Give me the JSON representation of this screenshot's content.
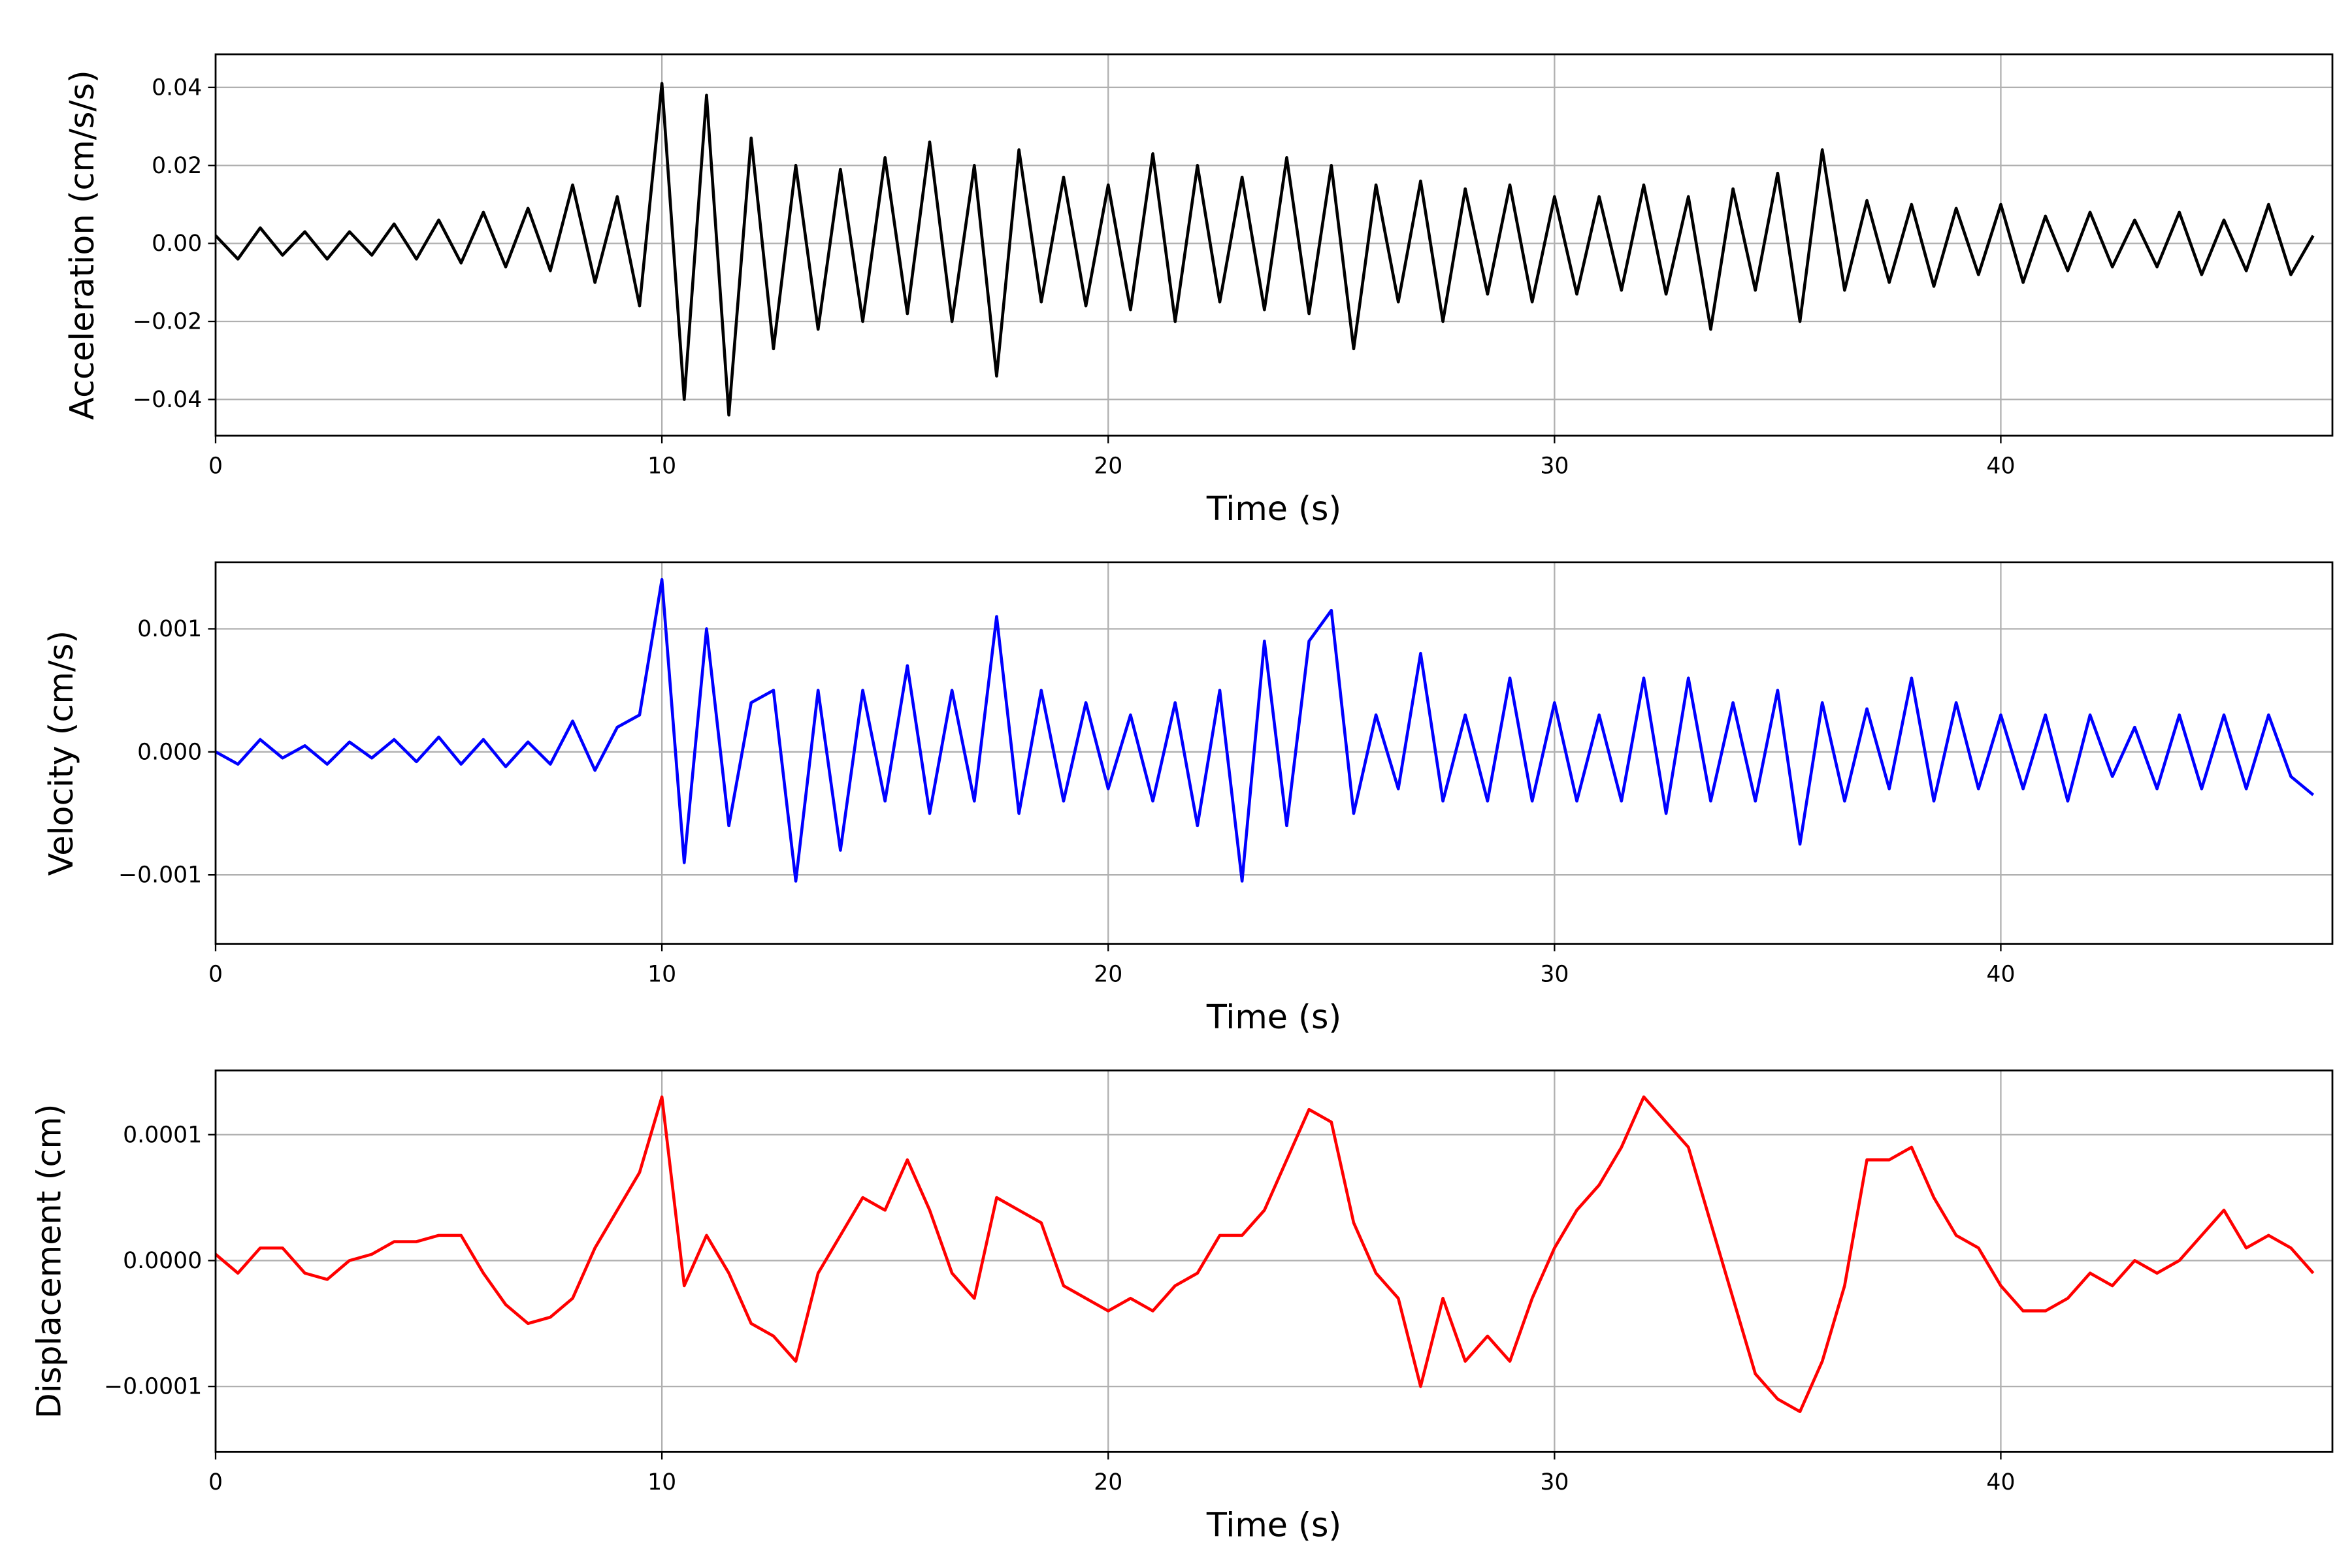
{
  "chart_data": [
    {
      "type": "line",
      "y_label": "Acceleration (cm/s/s)",
      "x_label": "Time (s)",
      "xlim": [
        0,
        47.43
      ],
      "ylim": [
        -0.0493,
        0.0485
      ],
      "xticks": [
        0,
        10,
        20,
        30,
        40
      ],
      "yticks": [
        {
          "value": -0.04,
          "label": "−0.04"
        },
        {
          "value": -0.02,
          "label": "−0.02"
        },
        {
          "value": 0,
          "label": "0.00"
        },
        0.02,
        0.04
      ],
      "grid": true,
      "x": [
        0,
        0.5,
        1,
        1.5,
        2,
        2.5,
        3,
        3.5,
        4,
        4.5,
        5,
        5.5,
        6,
        6.5,
        7,
        7.5,
        8,
        8.5,
        9,
        9.5,
        10,
        10.5,
        11,
        11.5,
        12,
        12.5,
        13,
        13.5,
        14,
        14.5,
        15,
        15.5,
        16,
        16.5,
        17,
        17.5,
        18,
        18.5,
        19,
        19.5,
        20,
        20.5,
        21,
        21.5,
        22,
        22.5,
        23,
        23.5,
        24,
        24.5,
        25,
        25.5,
        26,
        26.5,
        27,
        27.5,
        28,
        28.5,
        29,
        29.5,
        30,
        30.5,
        31,
        31.5,
        32,
        32.5,
        33,
        33.5,
        34,
        34.5,
        35,
        35.5,
        36,
        36.5,
        37,
        37.5,
        38,
        38.5,
        39,
        39.5,
        40,
        40.5,
        41,
        41.5,
        42,
        42.5,
        43,
        43.5,
        44,
        44.5,
        45,
        45.5,
        46,
        46.5,
        47
      ],
      "series": [
        {
          "color": "#000000",
          "values": [
            0.002,
            -0.004,
            0.004,
            -0.003,
            0.003,
            -0.004,
            0.003,
            -0.003,
            0.005,
            -0.004,
            0.006,
            -0.005,
            0.008,
            -0.006,
            0.009,
            -0.007,
            0.015,
            -0.01,
            0.012,
            -0.016,
            0.041,
            -0.04,
            0.038,
            -0.044,
            0.027,
            -0.027,
            0.02,
            -0.022,
            0.019,
            -0.02,
            0.022,
            -0.018,
            0.026,
            -0.02,
            0.02,
            -0.034,
            0.024,
            -0.015,
            0.017,
            -0.016,
            0.015,
            -0.017,
            0.023,
            -0.02,
            0.02,
            -0.015,
            0.017,
            -0.017,
            0.022,
            -0.018,
            0.02,
            -0.027,
            0.015,
            -0.015,
            0.016,
            -0.02,
            0.014,
            -0.013,
            0.015,
            -0.015,
            0.012,
            -0.013,
            0.012,
            -0.012,
            0.015,
            -0.013,
            0.012,
            -0.022,
            0.014,
            -0.012,
            0.018,
            -0.02,
            0.024,
            -0.012,
            0.011,
            -0.01,
            0.01,
            -0.011,
            0.009,
            -0.008,
            0.01,
            -0.01,
            0.007,
            -0.007,
            0.008,
            -0.006,
            0.006,
            -0.006,
            0.008,
            -0.008,
            0.006,
            -0.007,
            0.01,
            -0.008,
            0.002
          ]
        }
      ]
    },
    {
      "type": "line",
      "y_label": "Velocity (cm/s)",
      "x_label": "Time (s)",
      "xlim": [
        0,
        47.43
      ],
      "ylim": [
        -0.00156,
        0.00154
      ],
      "xticks": [
        0,
        10,
        20,
        30,
        40
      ],
      "yticks": [
        {
          "value": -0.001,
          "label": "−0.001"
        },
        {
          "value": 0,
          "label": "0.000"
        },
        0.001
      ],
      "grid": true,
      "x": [
        0,
        0.5,
        1,
        1.5,
        2,
        2.5,
        3,
        3.5,
        4,
        4.5,
        5,
        5.5,
        6,
        6.5,
        7,
        7.5,
        8,
        8.5,
        9,
        9.5,
        10,
        10.5,
        11,
        11.5,
        12,
        12.5,
        13,
        13.5,
        14,
        14.5,
        15,
        15.5,
        16,
        16.5,
        17,
        17.5,
        18,
        18.5,
        19,
        19.5,
        20,
        20.5,
        21,
        21.5,
        22,
        22.5,
        23,
        23.5,
        24,
        24.5,
        25,
        25.5,
        26,
        26.5,
        27,
        27.5,
        28,
        28.5,
        29,
        29.5,
        30,
        30.5,
        31,
        31.5,
        32,
        32.5,
        33,
        33.5,
        34,
        34.5,
        35,
        35.5,
        36,
        36.5,
        37,
        37.5,
        38,
        38.5,
        39,
        39.5,
        40,
        40.5,
        41,
        41.5,
        42,
        42.5,
        43,
        43.5,
        44,
        44.5,
        45,
        45.5,
        46,
        46.5,
        47
      ],
      "series": [
        {
          "color": "#0000ff",
          "values": [
            0,
            -0.0001,
            0.0001,
            -5e-05,
            5e-05,
            -0.0001,
            8e-05,
            -5e-05,
            0.0001,
            -8e-05,
            0.00012,
            -0.0001,
            0.0001,
            -0.00012,
            8e-05,
            -0.0001,
            0.00025,
            -0.00015,
            0.0002,
            0.0003,
            0.0014,
            -0.0009,
            0.001,
            -0.0006,
            0.0004,
            0.0005,
            -0.00105,
            0.0005,
            -0.0008,
            0.0005,
            -0.0004,
            0.0007,
            -0.0005,
            0.0005,
            -0.0004,
            0.0011,
            -0.0005,
            0.0005,
            -0.0004,
            0.0004,
            -0.0003,
            0.0003,
            -0.0004,
            0.0004,
            -0.0006,
            0.0005,
            -0.00105,
            0.0009,
            -0.0006,
            0.0009,
            0.00115,
            -0.0005,
            0.0003,
            -0.0003,
            0.0008,
            -0.0004,
            0.0003,
            -0.0004,
            0.0006,
            -0.0004,
            0.0004,
            -0.0004,
            0.0003,
            -0.0004,
            0.0006,
            -0.0005,
            0.0006,
            -0.0004,
            0.0004,
            -0.0004,
            0.0005,
            -0.00075,
            0.0004,
            -0.0004,
            0.00035,
            -0.0003,
            0.0006,
            -0.0004,
            0.0004,
            -0.0003,
            0.0003,
            -0.0003,
            0.0003,
            -0.0004,
            0.0003,
            -0.0002,
            0.0002,
            -0.0003,
            0.0003,
            -0.0003,
            0.0003,
            -0.0003,
            0.0003,
            -0.0002,
            -0.00035
          ]
        }
      ]
    },
    {
      "type": "line",
      "y_label": "Displacement (cm)",
      "x_label": "Time (s)",
      "xlim": [
        0,
        47.43
      ],
      "ylim": [
        -0.000152,
        0.000151
      ],
      "xticks": [
        0,
        10,
        20,
        30,
        40
      ],
      "yticks": [
        {
          "value": -0.0001,
          "label": "−0.0001"
        },
        {
          "value": 0,
          "label": "0.0000"
        },
        0.0001
      ],
      "grid": true,
      "x": [
        0,
        0.5,
        1,
        1.5,
        2,
        2.5,
        3,
        3.5,
        4,
        4.5,
        5,
        5.5,
        6,
        6.5,
        7,
        7.5,
        8,
        8.5,
        9,
        9.5,
        10,
        10.5,
        11,
        11.5,
        12,
        12.5,
        13,
        13.5,
        14,
        14.5,
        15,
        15.5,
        16,
        16.5,
        17,
        17.5,
        18,
        18.5,
        19,
        19.5,
        20,
        20.5,
        21,
        21.5,
        22,
        22.5,
        23,
        23.5,
        24,
        24.5,
        25,
        25.5,
        26,
        26.5,
        27,
        27.5,
        28,
        28.5,
        29,
        29.5,
        30,
        30.5,
        31,
        31.5,
        32,
        32.5,
        33,
        33.5,
        34,
        34.5,
        35,
        35.5,
        36,
        36.5,
        37,
        37.5,
        38,
        38.5,
        39,
        39.5,
        40,
        40.5,
        41,
        41.5,
        42,
        42.5,
        43,
        43.5,
        44,
        44.5,
        45,
        45.5,
        46,
        46.5,
        47
      ],
      "series": [
        {
          "color": "#ff0000",
          "values": [
            5e-06,
            -1e-05,
            1e-05,
            1e-05,
            -1e-05,
            -1.5e-05,
            0,
            5e-06,
            1.5e-05,
            1.5e-05,
            2e-05,
            2e-05,
            -1e-05,
            -3.5e-05,
            -5e-05,
            -4.5e-05,
            -3e-05,
            1e-05,
            4e-05,
            7e-05,
            0.00013,
            -2e-05,
            2e-05,
            -1e-05,
            -5e-05,
            -6e-05,
            -8e-05,
            -1e-05,
            2e-05,
            5e-05,
            4e-05,
            8e-05,
            4e-05,
            -1e-05,
            -3e-05,
            5e-05,
            4e-05,
            3e-05,
            -2e-05,
            -3e-05,
            -4e-05,
            -3e-05,
            -4e-05,
            -2e-05,
            -1e-05,
            2e-05,
            2e-05,
            4e-05,
            8e-05,
            0.00012,
            0.00011,
            3e-05,
            -1e-05,
            -3e-05,
            -0.0001,
            -3e-05,
            -8e-05,
            -6e-05,
            -8e-05,
            -3e-05,
            1e-05,
            4e-05,
            6e-05,
            9e-05,
            0.00013,
            0.00011,
            9e-05,
            3e-05,
            -3e-05,
            -9e-05,
            -0.00011,
            -0.00012,
            -8e-05,
            -2e-05,
            8e-05,
            8e-05,
            9e-05,
            5e-05,
            2e-05,
            1e-05,
            -2e-05,
            -4e-05,
            -4e-05,
            -3e-05,
            -1e-05,
            -2e-05,
            0,
            -1e-05,
            0,
            2e-05,
            4e-05,
            1e-05,
            2e-05,
            1e-05,
            -1e-05
          ]
        }
      ]
    }
  ]
}
